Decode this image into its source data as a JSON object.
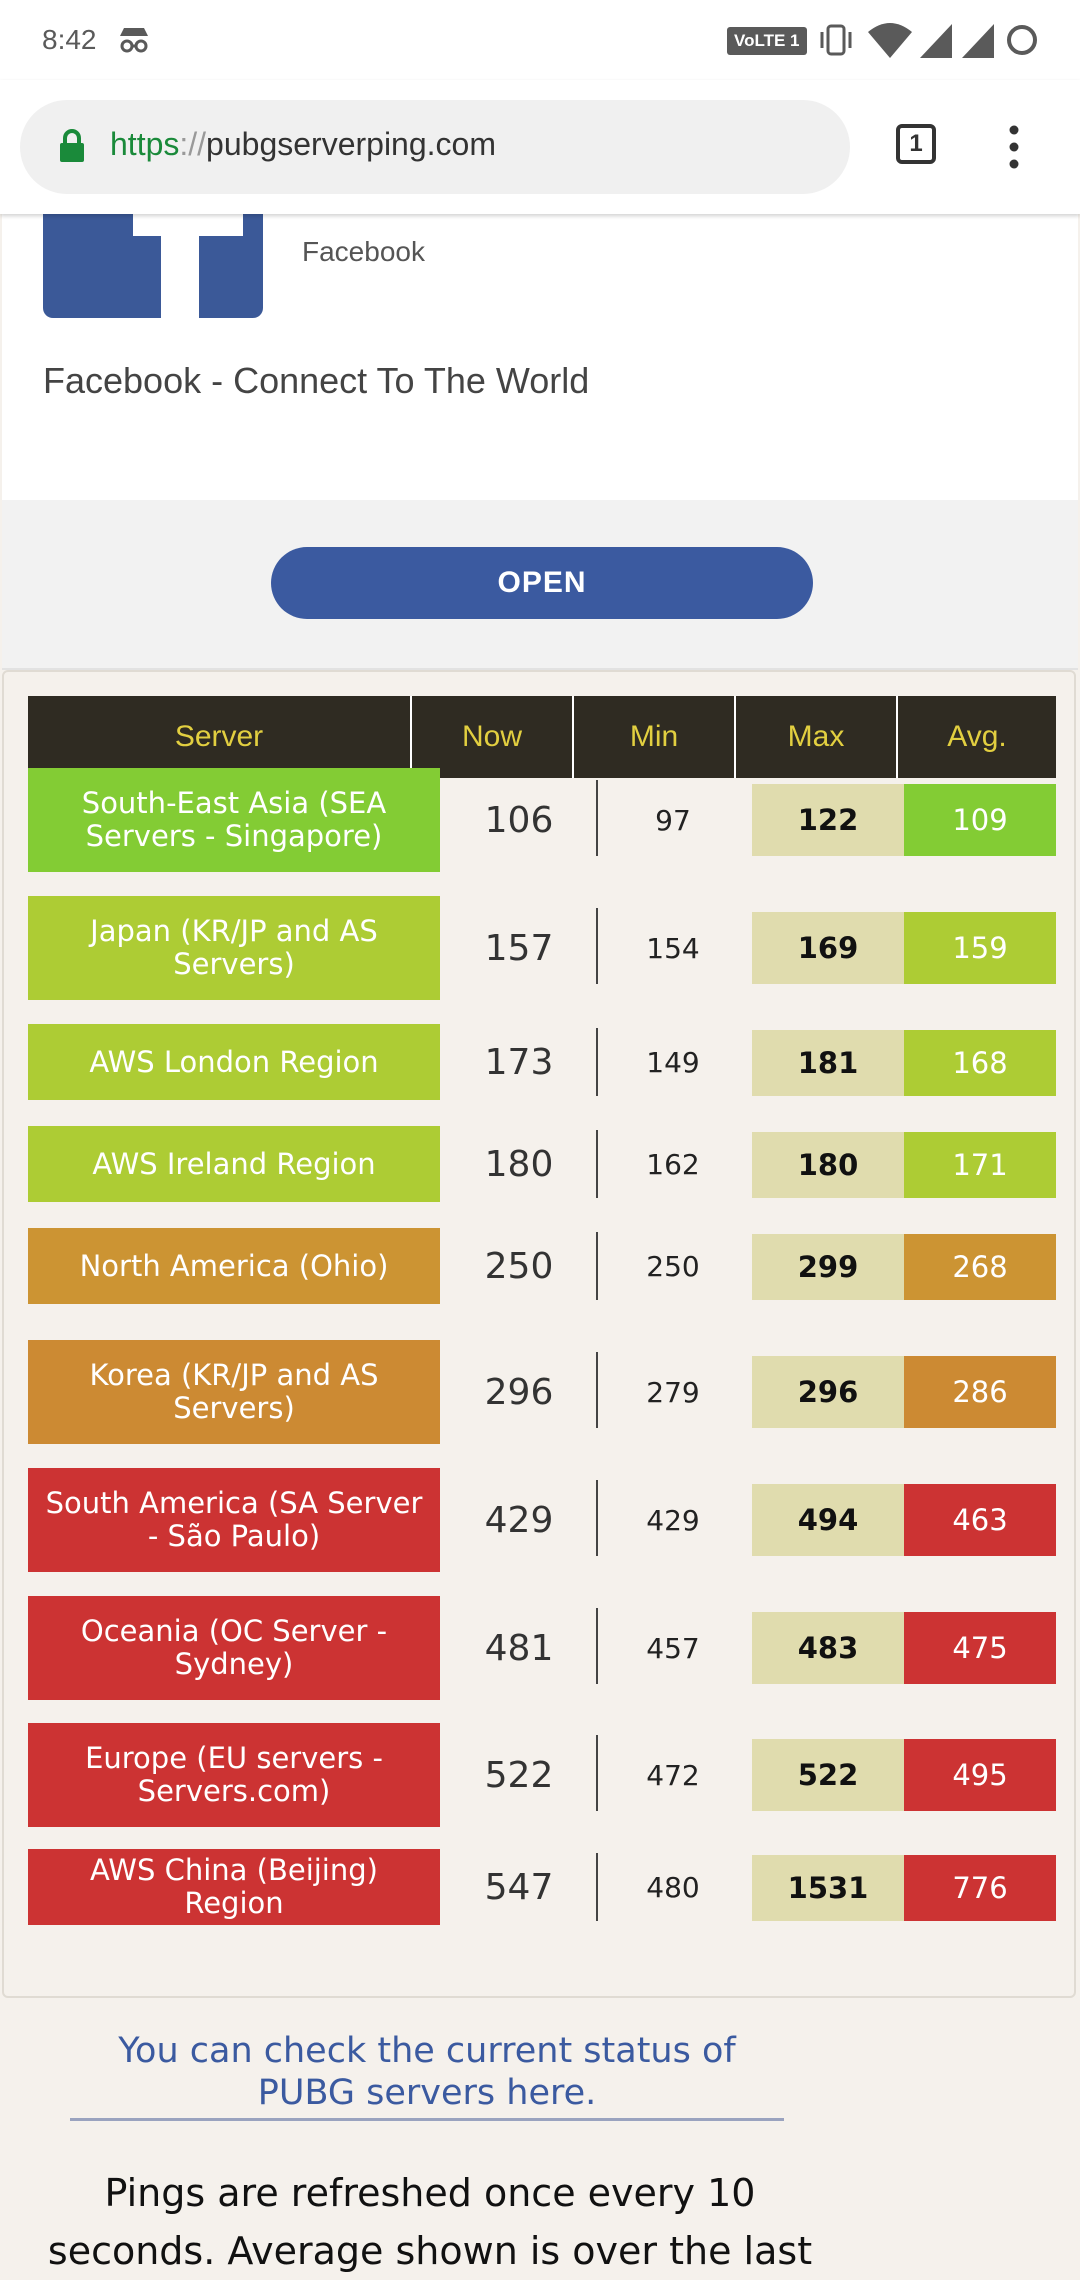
{
  "status_bar": {
    "time": "8:42",
    "volte": "VoLTE 1",
    "icons": [
      "incognito-icon",
      "vibrate-icon",
      "wifi-icon",
      "signal-icon",
      "signal-icon",
      "loading-ring-icon"
    ]
  },
  "browser": {
    "url_scheme": "https",
    "url_sep": "://",
    "url_host": "pubgserverping.com",
    "tab_count": "1"
  },
  "ad": {
    "brand": "Facebook",
    "headline": "Facebook - Connect To The World",
    "cta": "OPEN",
    "brand_color": "#3b5998"
  },
  "table": {
    "headers": [
      "Server",
      "Now",
      "Min",
      "Max",
      "Avg."
    ],
    "rows": [
      {
        "server": "South-East Asia (SEA Servers - Singapore)",
        "now": "106",
        "min": "97",
        "max": "122",
        "avg": "109",
        "color": "#83cc34",
        "avg_color": "#83cc34"
      },
      {
        "server": "Japan (KR/JP and AS Servers)",
        "now": "157",
        "min": "154",
        "max": "169",
        "avg": "159",
        "color": "#adcc34",
        "avg_color": "#adcc34"
      },
      {
        "server": "AWS London Region",
        "now": "173",
        "min": "149",
        "max": "181",
        "avg": "168",
        "color": "#adcc34",
        "avg_color": "#adcc34"
      },
      {
        "server": "AWS Ireland Region",
        "now": "180",
        "min": "162",
        "max": "180",
        "avg": "171",
        "color": "#adcc34",
        "avg_color": "#adcc34"
      },
      {
        "server": "North America (Ohio)",
        "now": "250",
        "min": "250",
        "max": "299",
        "avg": "268",
        "color": "#cc9433",
        "avg_color": "#cc9433"
      },
      {
        "server": "Korea (KR/JP and AS Servers)",
        "now": "296",
        "min": "279",
        "max": "296",
        "avg": "286",
        "color": "#cc8a33",
        "avg_color": "#cc8a33"
      },
      {
        "server": "South America (SA Server - São Paulo)",
        "now": "429",
        "min": "429",
        "max": "494",
        "avg": "463",
        "color": "#cc3333",
        "avg_color": "#cc3333"
      },
      {
        "server": "Oceania (OC Server - Sydney)",
        "now": "481",
        "min": "457",
        "max": "483",
        "avg": "475",
        "color": "#cc3333",
        "avg_color": "#cc3333"
      },
      {
        "server": "Europe (EU servers - Servers.com)",
        "now": "522",
        "min": "472",
        "max": "522",
        "avg": "495",
        "color": "#cc3333",
        "avg_color": "#cc3333"
      },
      {
        "server": "AWS China (Beijing) Region",
        "now": "547",
        "min": "480",
        "max": "1531",
        "avg": "776",
        "color": "#cc3333",
        "avg_color": "#cc3333"
      }
    ]
  },
  "footer": {
    "status_link": "You can check the current status of PUBG servers here.",
    "refresh_note": "Pings are refreshed once every 10 seconds. Average shown is over the last"
  }
}
